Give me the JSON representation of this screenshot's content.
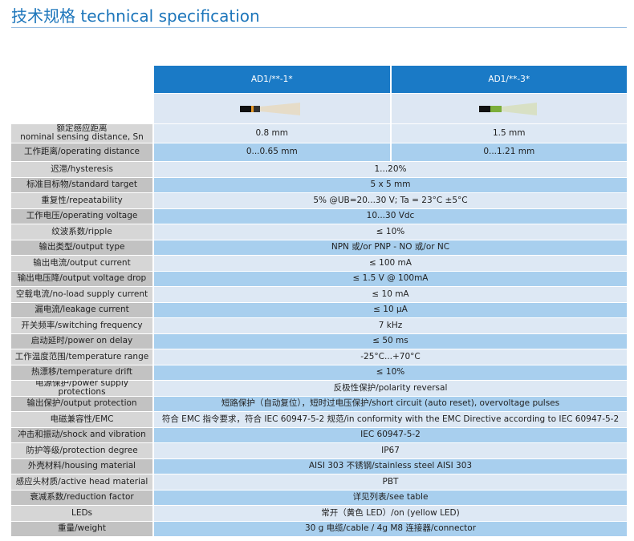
{
  "header": {
    "title": "技术规格 technical specification"
  },
  "table": {
    "columns": [
      "AD1/**-1*",
      "AD1/**-3*"
    ],
    "rows": [
      {
        "label": "额定感应距离\nnominal sensing distance, Sn",
        "values": [
          "0.8 mm",
          "1.5 mm"
        ]
      },
      {
        "label": "工作距离/operating distance",
        "values": [
          "0...0.65 mm",
          "0...1.21 mm"
        ]
      },
      {
        "label": "迟滞/hysteresis",
        "values": [
          "1...20%"
        ]
      },
      {
        "label": "标准目标物/standard target",
        "values": [
          "5 x 5 mm"
        ]
      },
      {
        "label": "重复性/repeatability",
        "values": [
          "5% @UB=20...30 V; Ta = 23°C ±5°C"
        ]
      },
      {
        "label": "工作电压/operating voltage",
        "values": [
          "10...30 Vdc"
        ]
      },
      {
        "label": "纹波系数/ripple",
        "values": [
          "≤ 10%"
        ]
      },
      {
        "label": "输出类型/output type",
        "values": [
          "NPN 或/or PNP - NO 或/or NC"
        ]
      },
      {
        "label": "输出电流/output current",
        "values": [
          "≤ 100 mA"
        ]
      },
      {
        "label": "输出电压降/output voltage drop",
        "values": [
          "≤ 1.5 V @ 100mA"
        ]
      },
      {
        "label": "空载电流/no-load supply current",
        "values": [
          "≤ 10 mA"
        ]
      },
      {
        "label": "漏电流/leakage current",
        "values": [
          "≤ 10 µA"
        ]
      },
      {
        "label": "开关频率/switching frequency",
        "values": [
          "7 kHz"
        ]
      },
      {
        "label": "启动延时/power on delay",
        "values": [
          "≤ 50 ms"
        ]
      },
      {
        "label": "工作温度范围/temperature range",
        "values": [
          "-25°C...+70°C"
        ]
      },
      {
        "label": "热漂移/temperature drift",
        "values": [
          "≤ 10%"
        ]
      },
      {
        "label": "电源保护/power supply protections",
        "values": [
          "反极性保护/polarity reversal"
        ]
      },
      {
        "label": "输出保护/output protection",
        "values": [
          "短路保护（自动复位），短时过电压保护/short circuit (auto reset), overvoltage pulses"
        ]
      },
      {
        "label": "电磁兼容性/EMC",
        "values": [
          "符合 EMC 指令要求，符合 IEC 60947-5-2 规范/in conformity with the EMC Directive according to IEC 60947-5-2"
        ]
      },
      {
        "label": "冲击和振动/shock and vibration",
        "values": [
          "IEC 60947-5-2"
        ]
      },
      {
        "label": "防护等级/protection degree",
        "values": [
          "IP67"
        ]
      },
      {
        "label": "外壳材料/housing material",
        "values": [
          "AISI 303 不锈钢/stainless steel AISI 303"
        ]
      },
      {
        "label": "感应头材质/active head material",
        "values": [
          "PBT"
        ]
      },
      {
        "label": "衰减系数/reduction factor",
        "values": [
          "详见列表/see table"
        ]
      },
      {
        "label": "LEDs",
        "values": [
          "常开（黄色 LED）/on (yellow LED)"
        ]
      },
      {
        "label": "重量/weight",
        "values": [
          "30 g 电缆/cable / 4g M8 连接器/connector"
        ]
      }
    ]
  }
}
